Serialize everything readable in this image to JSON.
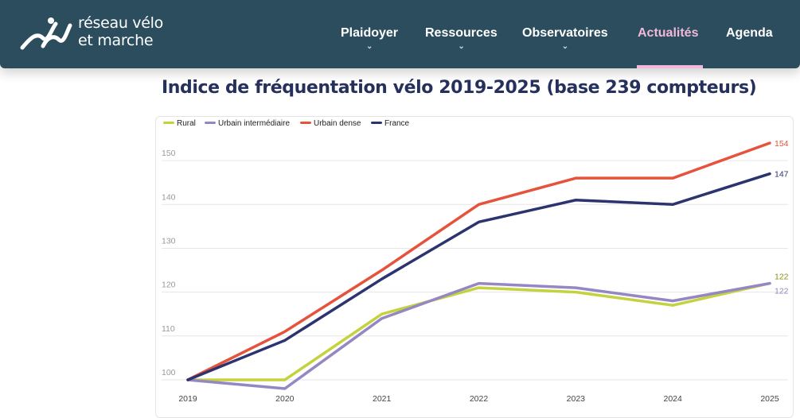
{
  "header": {
    "logo_line1": "réseau vélo",
    "logo_line2": "et marche",
    "nav": [
      {
        "label": "Plaidoyer",
        "dropdown": true,
        "active": false
      },
      {
        "label": "Ressources",
        "dropdown": true,
        "active": false
      },
      {
        "label": "Observatoires",
        "dropdown": true,
        "active": false
      },
      {
        "label": "Actualités",
        "dropdown": false,
        "active": true
      },
      {
        "label": "Agenda",
        "dropdown": false,
        "active": false
      }
    ],
    "colors": {
      "background": "#2b4d5e",
      "active": "#f2b8d9"
    }
  },
  "page_title": "Indice de fréquentation vélo 2019-2025 (base 239 compteurs)",
  "chart_data": {
    "type": "line",
    "title": "",
    "xlabel": "",
    "ylabel": "",
    "x": [
      "2019",
      "2020",
      "2021",
      "2022",
      "2023",
      "2024",
      "2025"
    ],
    "y_ticks": [
      100,
      110,
      120,
      130,
      140,
      150
    ],
    "ylim": [
      98,
      156
    ],
    "grid": true,
    "legend_position": "top-left",
    "series": [
      {
        "name": "Rural",
        "color": "#c5d23f",
        "values": [
          100,
          100,
          115,
          121,
          120,
          117,
          122
        ],
        "end_label": "122"
      },
      {
        "name": "Urbain intermédiaire",
        "color": "#9487c4",
        "values": [
          100,
          98,
          114,
          122,
          121,
          118,
          122
        ],
        "end_label": "122"
      },
      {
        "name": "Urbain dense",
        "color": "#e5533c",
        "values": [
          100,
          111,
          125,
          140,
          146,
          146,
          154
        ],
        "end_label": "154"
      },
      {
        "name": "France",
        "color": "#2c3470",
        "values": [
          100,
          109,
          123,
          136,
          141,
          140,
          147
        ],
        "end_label": "147"
      }
    ]
  }
}
